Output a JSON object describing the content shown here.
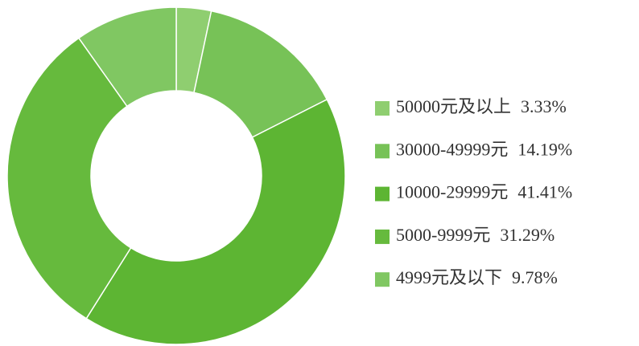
{
  "chart_data": {
    "type": "donut",
    "categories": [
      "50000元及以上",
      "30000-49999元",
      "10000-29999元",
      "5000-9999元",
      "4999元及以下"
    ],
    "values": [
      3.33,
      14.19,
      41.41,
      31.29,
      9.78
    ],
    "value_labels": [
      "3.33%",
      "14.19%",
      "41.41%",
      "31.29%",
      "9.78%"
    ],
    "colors": [
      "#8fce70",
      "#77c257",
      "#5db533",
      "#66ba3d",
      "#80c762"
    ]
  }
}
